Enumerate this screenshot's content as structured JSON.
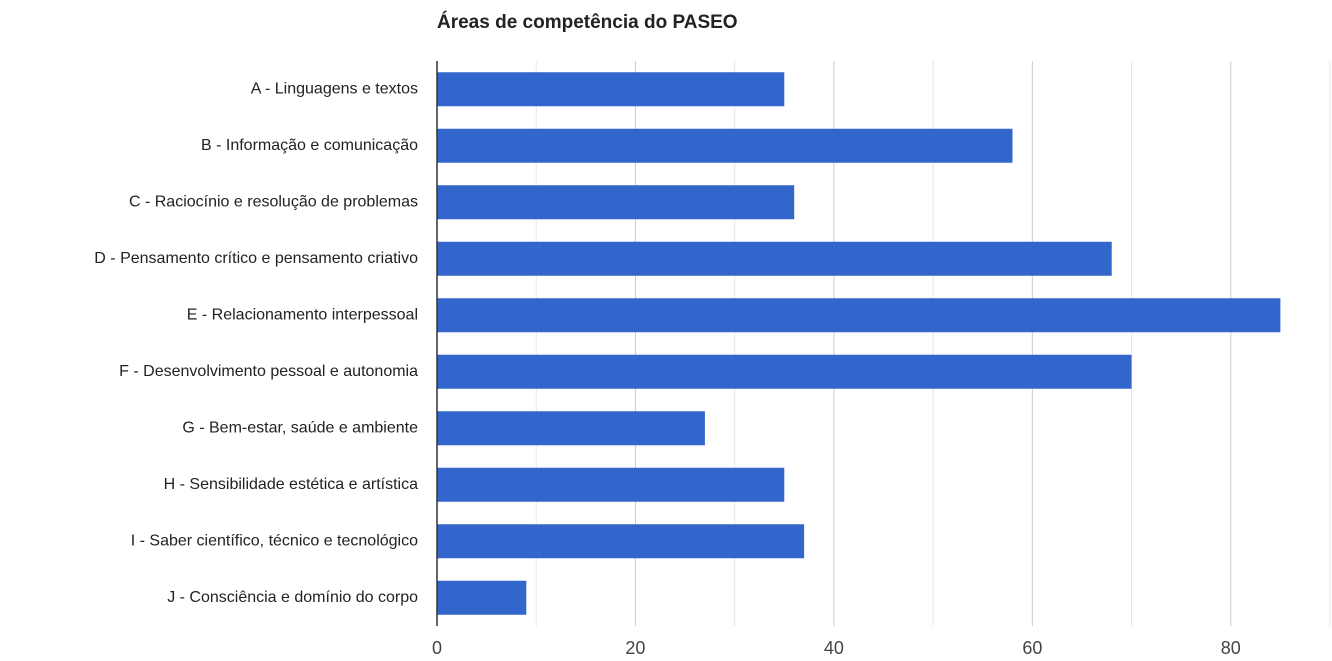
{
  "chart_data": {
    "type": "bar",
    "orientation": "horizontal",
    "title": "Áreas de competência do PASEO",
    "categories": [
      "A - Linguagens e textos",
      "B - Informação e comunicação",
      "C - Raciocínio e resolução de problemas",
      "D - Pensamento crítico e pensamento criativo",
      "E - Relacionamento interpessoal",
      "F - Desenvolvimento pessoal e autonomia",
      "G - Bem-estar, saúde e ambiente",
      "H - Sensibilidade estética e artística",
      "I - Saber científico, técnico e tecnológico",
      "J - Consciência e domínio do corpo"
    ],
    "values": [
      35,
      58,
      36,
      68,
      85,
      70,
      27,
      35,
      37,
      9
    ],
    "color": "#3366cc",
    "xlim": [
      0,
      90
    ],
    "xticks": [
      0,
      20,
      40,
      60,
      80
    ],
    "xminorticks": [
      10,
      30,
      50,
      70,
      90
    ],
    "grid": true
  }
}
